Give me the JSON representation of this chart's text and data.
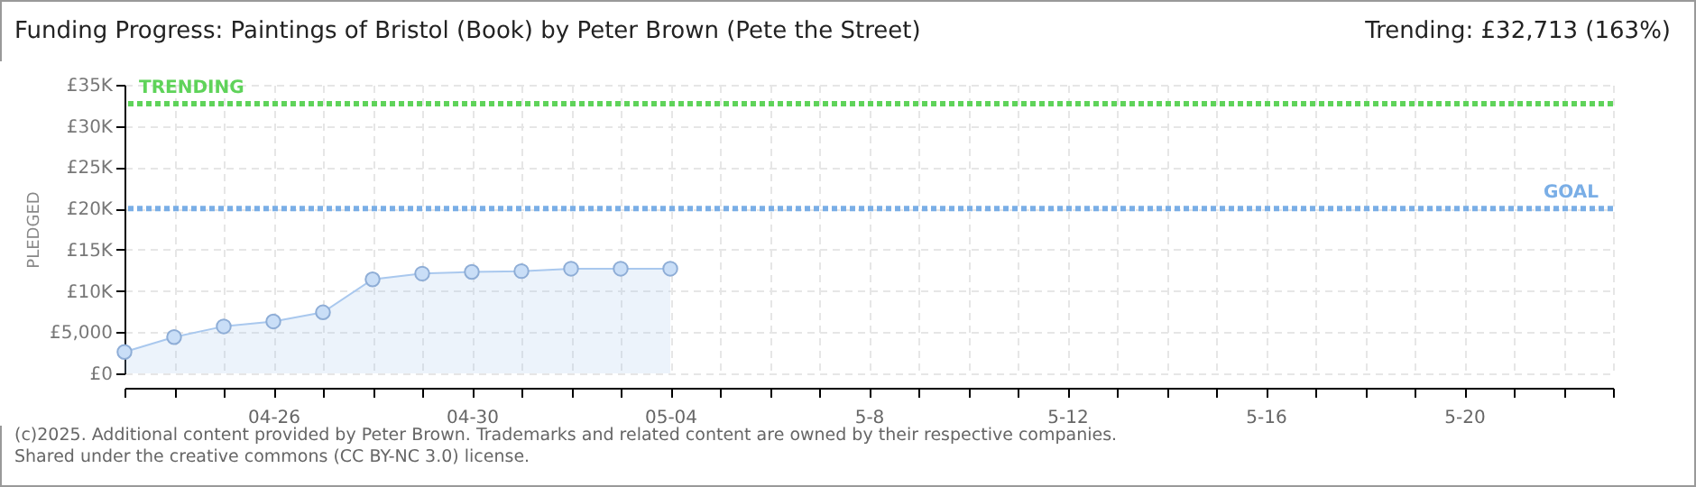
{
  "chart_data": {
    "type": "area",
    "title": "Funding Progress: Paintings of Bristol (Book) by Peter Brown (Pete the Street)",
    "subtitle": "Trending:  £32,713 (163%)",
    "ylabel": "PLEDGED",
    "x": [
      "2025-04-23",
      "2025-04-24",
      "2025-04-25",
      "2025-04-26",
      "2025-04-27",
      "2025-04-28",
      "2025-04-29",
      "2025-04-30",
      "2025-05-01",
      "2025-05-02",
      "2025-05-03",
      "2025-05-04"
    ],
    "series": [
      {
        "color": "#a9c8ee",
        "values": [
          2600,
          4400,
          5700,
          6300,
          7400,
          11400,
          12100,
          12300,
          12400,
          12700,
          12700,
          12700
        ]
      }
    ],
    "xlim": [
      "2025-04-23",
      "2025-05-23"
    ],
    "xticks": [
      {
        "value": "2025-04-23",
        "label": null
      },
      {
        "value": "2025-04-24",
        "label": null
      },
      {
        "value": "2025-04-25",
        "label": null
      },
      {
        "value": "2025-04-26",
        "label": "04-26"
      },
      {
        "value": "2025-04-27",
        "label": null
      },
      {
        "value": "2025-04-28",
        "label": null
      },
      {
        "value": "2025-04-29",
        "label": null
      },
      {
        "value": "2025-04-30",
        "label": "04-30"
      },
      {
        "value": "2025-05-01",
        "label": null
      },
      {
        "value": "2025-05-02",
        "label": null
      },
      {
        "value": "2025-05-03",
        "label": null
      },
      {
        "value": "2025-05-04",
        "label": "05-04"
      },
      {
        "value": "2025-05-05",
        "label": null
      },
      {
        "value": "2025-05-06",
        "label": null
      },
      {
        "value": "2025-05-07",
        "label": null
      },
      {
        "value": "2025-05-08",
        "label": "5-8"
      },
      {
        "value": "2025-05-09",
        "label": null
      },
      {
        "value": "2025-05-10",
        "label": null
      },
      {
        "value": "2025-05-11",
        "label": null
      },
      {
        "value": "2025-05-12",
        "label": "5-12"
      },
      {
        "value": "2025-05-13",
        "label": null
      },
      {
        "value": "2025-05-14",
        "label": null
      },
      {
        "value": "2025-05-15",
        "label": null
      },
      {
        "value": "2025-05-16",
        "label": "5-16"
      },
      {
        "value": "2025-05-17",
        "label": null
      },
      {
        "value": "2025-05-18",
        "label": null
      },
      {
        "value": "2025-05-19",
        "label": null
      },
      {
        "value": "2025-05-20",
        "label": "5-20"
      },
      {
        "value": "2025-05-21",
        "label": null
      },
      {
        "value": "2025-05-22",
        "label": null
      },
      {
        "value": "2025-05-23",
        "label": null
      }
    ],
    "ylim": [
      0,
      35000
    ],
    "yticks": [
      {
        "value": 0,
        "label": "£0"
      },
      {
        "value": 5000,
        "label": "£5,000"
      },
      {
        "value": 10000,
        "label": "£10K"
      },
      {
        "value": 15000,
        "label": "£15K"
      },
      {
        "value": 20000,
        "label": "£20K"
      },
      {
        "value": 25000,
        "label": "£25K"
      },
      {
        "value": 30000,
        "label": "£30K"
      },
      {
        "value": 35000,
        "label": "£35K"
      }
    ],
    "ref_lines": [
      {
        "axis": "y",
        "value": 32713,
        "label": "TRENDING",
        "color": "#5fd35a",
        "line_style": "dotted"
      },
      {
        "axis": "y",
        "value": 20000,
        "label": "GOAL",
        "color": "#7aaee6",
        "line_style": "dotted"
      }
    ],
    "grid": true,
    "marker": "circle",
    "annotations": [
      "(c)2025. Additional content provided by Peter Brown. Trademarks and related content are owned by their respective companies.",
      "Shared under the creative commons (CC BY-NC 3.0) license."
    ]
  }
}
